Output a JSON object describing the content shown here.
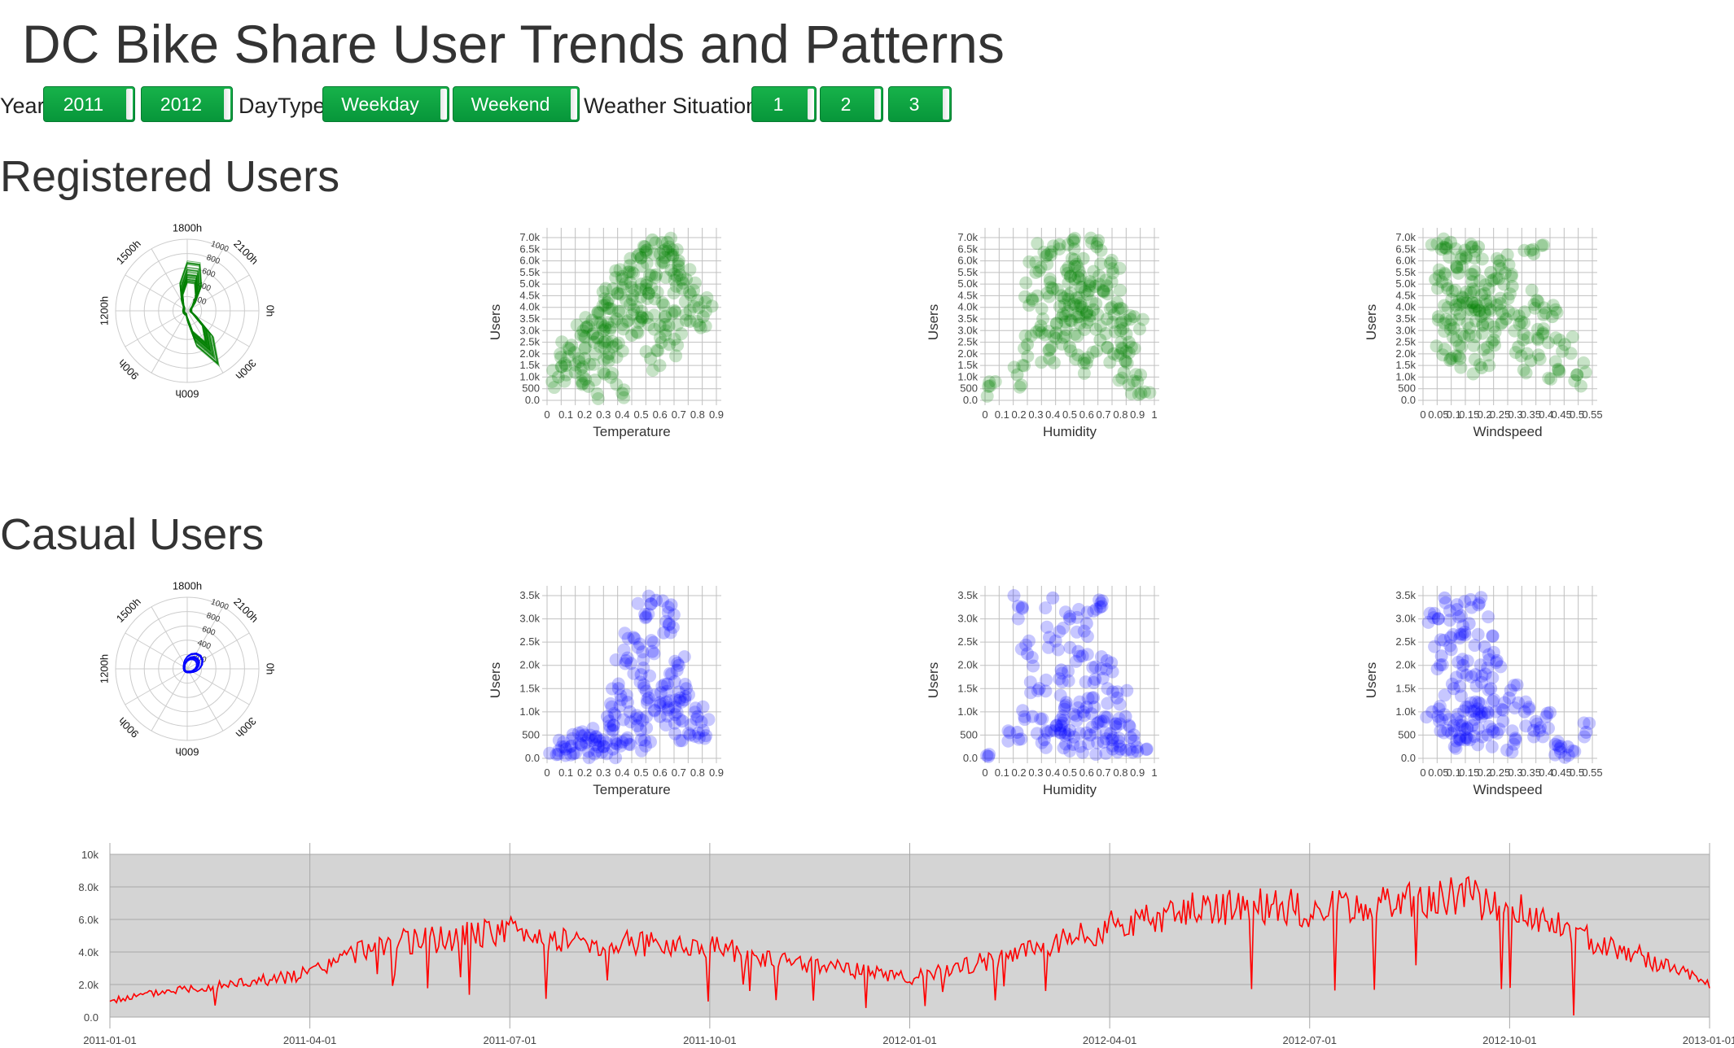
{
  "page": {
    "title": "DC Bike Share User Trends and Patterns"
  },
  "filters": {
    "year_label": "Year",
    "year_buttons": [
      "2011",
      "2012"
    ],
    "daytype_label": "DayType",
    "daytype_buttons": [
      "Weekday",
      "Weekend"
    ],
    "weather_label": "Weather Situation",
    "weather_buttons": [
      "1",
      "2",
      "3"
    ],
    "button_color": "#0a9e3f"
  },
  "colors": {
    "registered": "#008000",
    "casual": "#0000ff",
    "timeseries": "#ff0000",
    "timeseries_bg": "#d4d4d4"
  },
  "sections": {
    "registered": {
      "title": "Registered Users",
      "radial": {
        "hour_labels": [
          "1800h",
          "2100h",
          "0h",
          "300h",
          "600h",
          "900h",
          "1200h",
          "1500h"
        ],
        "radius_ticks": [
          "200",
          "400",
          "600",
          "800",
          "1000"
        ]
      },
      "scatter_temperature": {
        "xlabel": "Temperature",
        "ylabel": "Users",
        "xticks": [
          "0",
          "0.1",
          "0.2",
          "0.3",
          "0.4",
          "0.5",
          "0.6",
          "0.7",
          "0.8",
          "0.9"
        ],
        "yticks": [
          "0.0",
          "500",
          "1.0k",
          "1.5k",
          "2.0k",
          "2.5k",
          "3.0k",
          "3.5k",
          "4.0k",
          "4.5k",
          "5.0k",
          "5.5k",
          "6.0k",
          "6.5k",
          "7.0k"
        ]
      },
      "scatter_humidity": {
        "xlabel": "Humidity",
        "ylabel": "Users",
        "xticks": [
          "0",
          "0.1",
          "0.2",
          "0.3",
          "0.4",
          "0.5",
          "0.6",
          "0.7",
          "0.8",
          "0.9",
          "1"
        ],
        "yticks": [
          "0.0",
          "500",
          "1.0k",
          "1.5k",
          "2.0k",
          "2.5k",
          "3.0k",
          "3.5k",
          "4.0k",
          "4.5k",
          "5.0k",
          "5.5k",
          "6.0k",
          "6.5k",
          "7.0k"
        ]
      },
      "scatter_windspeed": {
        "xlabel": "Windspeed",
        "ylabel": "Users",
        "xticks": [
          "0",
          "0.05",
          "0.1",
          "0.15",
          "0.2",
          "0.25",
          "0.3",
          "0.35",
          "0.4",
          "0.45",
          "0.5",
          "0.55"
        ],
        "yticks": [
          "0.0",
          "500",
          "1.0k",
          "1.5k",
          "2.0k",
          "2.5k",
          "3.0k",
          "3.5k",
          "4.0k",
          "4.5k",
          "5.0k",
          "5.5k",
          "6.0k",
          "6.5k",
          "7.0k"
        ]
      }
    },
    "casual": {
      "title": "Casual Users",
      "radial": {
        "hour_labels": [
          "1800h",
          "2100h",
          "0h",
          "300h",
          "600h",
          "900h",
          "1200h",
          "1500h"
        ],
        "radius_ticks": [
          "200",
          "400",
          "600",
          "800",
          "1000"
        ]
      },
      "scatter_temperature": {
        "xlabel": "Temperature",
        "ylabel": "Users",
        "xticks": [
          "0",
          "0.1",
          "0.2",
          "0.3",
          "0.4",
          "0.5",
          "0.6",
          "0.7",
          "0.8",
          "0.9"
        ],
        "yticks": [
          "0.0",
          "500",
          "1.0k",
          "1.5k",
          "2.0k",
          "2.5k",
          "3.0k",
          "3.5k"
        ]
      },
      "scatter_humidity": {
        "xlabel": "Humidity",
        "ylabel": "Users",
        "xticks": [
          "0",
          "0.1",
          "0.2",
          "0.3",
          "0.4",
          "0.5",
          "0.6",
          "0.7",
          "0.8",
          "0.9",
          "1"
        ],
        "yticks": [
          "0.0",
          "500",
          "1.0k",
          "1.5k",
          "2.0k",
          "2.5k",
          "3.0k",
          "3.5k"
        ]
      },
      "scatter_windspeed": {
        "xlabel": "Windspeed",
        "ylabel": "Users",
        "xticks": [
          "0",
          "0.05",
          "0.1",
          "0.15",
          "0.2",
          "0.25",
          "0.3",
          "0.35",
          "0.4",
          "0.45",
          "0.5",
          "0.55"
        ],
        "yticks": [
          "0.0",
          "500",
          "1.0k",
          "1.5k",
          "2.0k",
          "2.5k",
          "3.0k",
          "3.5k"
        ]
      }
    }
  },
  "chart_data": [
    {
      "type": "scatter",
      "id": "reg-temp",
      "xlabel": "Temperature",
      "ylabel": "Users",
      "xlim": [
        0,
        0.9
      ],
      "ylim": [
        0,
        7000
      ],
      "points": [
        [
          0.06,
          1000
        ],
        [
          0.1,
          1500
        ],
        [
          0.12,
          2200
        ],
        [
          0.15,
          1200
        ],
        [
          0.18,
          2800
        ],
        [
          0.2,
          1800
        ],
        [
          0.22,
          3200
        ],
        [
          0.25,
          2500
        ],
        [
          0.27,
          3800
        ],
        [
          0.3,
          3000
        ],
        [
          0.32,
          4200
        ],
        [
          0.33,
          2000
        ],
        [
          0.35,
          4800
        ],
        [
          0.37,
          3500
        ],
        [
          0.4,
          5200
        ],
        [
          0.42,
          4300
        ],
        [
          0.44,
          5800
        ],
        [
          0.46,
          3900
        ],
        [
          0.48,
          6200
        ],
        [
          0.5,
          5000
        ],
        [
          0.52,
          6600
        ],
        [
          0.54,
          4600
        ],
        [
          0.56,
          6900
        ],
        [
          0.58,
          5400
        ],
        [
          0.6,
          6300
        ],
        [
          0.62,
          4100
        ],
        [
          0.64,
          6800
        ],
        [
          0.66,
          5600
        ],
        [
          0.68,
          3800
        ],
        [
          0.7,
          6000
        ],
        [
          0.72,
          4800
        ],
        [
          0.74,
          5200
        ],
        [
          0.76,
          3400
        ],
        [
          0.8,
          4300
        ],
        [
          0.83,
          3600
        ],
        [
          0.4,
          300
        ],
        [
          0.55,
          1800
        ],
        [
          0.65,
          2400
        ],
        [
          0.3,
          1200
        ],
        [
          0.45,
          2800
        ],
        [
          0.22,
          600
        ],
        [
          0.5,
          3600
        ],
        [
          0.6,
          3200
        ],
        [
          0.35,
          2300
        ]
      ]
    },
    {
      "type": "scatter",
      "id": "reg-hum",
      "xlabel": "Humidity",
      "ylabel": "Users",
      "xlim": [
        0,
        1
      ],
      "ylim": [
        0,
        7000
      ],
      "points": [
        [
          0.02,
          600
        ],
        [
          0.19,
          1100
        ],
        [
          0.25,
          2400
        ],
        [
          0.28,
          4300
        ],
        [
          0.3,
          5500
        ],
        [
          0.33,
          3200
        ],
        [
          0.36,
          6200
        ],
        [
          0.38,
          1800
        ],
        [
          0.4,
          4800
        ],
        [
          0.42,
          2900
        ],
        [
          0.44,
          6700
        ],
        [
          0.46,
          3700
        ],
        [
          0.48,
          5600
        ],
        [
          0.5,
          2300
        ],
        [
          0.52,
          6900
        ],
        [
          0.54,
          4400
        ],
        [
          0.56,
          3300
        ],
        [
          0.58,
          6100
        ],
        [
          0.6,
          1600
        ],
        [
          0.62,
          5100
        ],
        [
          0.64,
          3900
        ],
        [
          0.66,
          6600
        ],
        [
          0.68,
          2600
        ],
        [
          0.7,
          4700
        ],
        [
          0.72,
          3500
        ],
        [
          0.74,
          5900
        ],
        [
          0.76,
          2000
        ],
        [
          0.78,
          4200
        ],
        [
          0.8,
          3000
        ],
        [
          0.82,
          1200
        ],
        [
          0.85,
          2500
        ],
        [
          0.88,
          3600
        ],
        [
          0.9,
          800
        ],
        [
          0.5,
          4100
        ],
        [
          0.55,
          5300
        ],
        [
          0.6,
          3800
        ],
        [
          0.45,
          4500
        ],
        [
          0.65,
          4900
        ],
        [
          0.92,
          300
        ]
      ]
    },
    {
      "type": "scatter",
      "id": "reg-wind",
      "xlabel": "Windspeed",
      "ylabel": "Users",
      "xlim": [
        0,
        0.55
      ],
      "ylim": [
        0,
        7000
      ],
      "points": [
        [
          0.04,
          5200
        ],
        [
          0.05,
          3600
        ],
        [
          0.06,
          6500
        ],
        [
          0.07,
          2200
        ],
        [
          0.08,
          4800
        ],
        [
          0.09,
          6800
        ],
        [
          0.1,
          3100
        ],
        [
          0.11,
          5700
        ],
        [
          0.12,
          1800
        ],
        [
          0.13,
          4400
        ],
        [
          0.14,
          6200
        ],
        [
          0.15,
          2800
        ],
        [
          0.16,
          5100
        ],
        [
          0.17,
          3900
        ],
        [
          0.18,
          6600
        ],
        [
          0.19,
          1400
        ],
        [
          0.2,
          4600
        ],
        [
          0.21,
          3300
        ],
        [
          0.22,
          5500
        ],
        [
          0.23,
          2600
        ],
        [
          0.24,
          4100
        ],
        [
          0.25,
          6000
        ],
        [
          0.27,
          3500
        ],
        [
          0.29,
          4900
        ],
        [
          0.31,
          2300
        ],
        [
          0.33,
          3800
        ],
        [
          0.35,
          1700
        ],
        [
          0.37,
          4300
        ],
        [
          0.39,
          2900
        ],
        [
          0.42,
          3600
        ],
        [
          0.44,
          1300
        ],
        [
          0.46,
          2400
        ],
        [
          0.5,
          1100
        ],
        [
          0.36,
          6300
        ],
        [
          0.12,
          3700
        ],
        [
          0.16,
          4200
        ],
        [
          0.2,
          3800
        ]
      ]
    },
    {
      "type": "scatter",
      "id": "cas-temp",
      "xlabel": "Temperature",
      "ylabel": "Users",
      "xlim": [
        0,
        0.9
      ],
      "ylim": [
        0,
        3500
      ],
      "points": [
        [
          0.05,
          80
        ],
        [
          0.1,
          200
        ],
        [
          0.14,
          100
        ],
        [
          0.18,
          300
        ],
        [
          0.22,
          150
        ],
        [
          0.26,
          450
        ],
        [
          0.3,
          250
        ],
        [
          0.32,
          900
        ],
        [
          0.35,
          600
        ],
        [
          0.38,
          1500
        ],
        [
          0.4,
          350
        ],
        [
          0.42,
          2100
        ],
        [
          0.44,
          1000
        ],
        [
          0.46,
          2600
        ],
        [
          0.48,
          700
        ],
        [
          0.5,
          1800
        ],
        [
          0.52,
          3100
        ],
        [
          0.54,
          1300
        ],
        [
          0.56,
          2300
        ],
        [
          0.58,
          3400
        ],
        [
          0.6,
          900
        ],
        [
          0.62,
          2700
        ],
        [
          0.64,
          1600
        ],
        [
          0.66,
          3300
        ],
        [
          0.68,
          1100
        ],
        [
          0.7,
          2000
        ],
        [
          0.72,
          800
        ],
        [
          0.74,
          1500
        ],
        [
          0.76,
          500
        ],
        [
          0.8,
          900
        ],
        [
          0.83,
          600
        ],
        [
          0.2,
          500
        ],
        [
          0.5,
          400
        ],
        [
          0.6,
          1200
        ],
        [
          0.35,
          200
        ]
      ]
    },
    {
      "type": "scatter",
      "id": "cas-hum",
      "xlabel": "Humidity",
      "ylabel": "Users",
      "xlim": [
        0,
        1
      ],
      "ylim": [
        0,
        3500
      ],
      "points": [
        [
          0.02,
          40
        ],
        [
          0.19,
          560
        ],
        [
          0.22,
          3250
        ],
        [
          0.25,
          2250
        ],
        [
          0.28,
          900
        ],
        [
          0.32,
          1500
        ],
        [
          0.35,
          400
        ],
        [
          0.38,
          2600
        ],
        [
          0.4,
          3450
        ],
        [
          0.42,
          700
        ],
        [
          0.45,
          1900
        ],
        [
          0.48,
          1200
        ],
        [
          0.5,
          3000
        ],
        [
          0.52,
          300
        ],
        [
          0.55,
          2300
        ],
        [
          0.58,
          1000
        ],
        [
          0.6,
          2900
        ],
        [
          0.62,
          500
        ],
        [
          0.65,
          1700
        ],
        [
          0.68,
          3250
        ],
        [
          0.7,
          800
        ],
        [
          0.72,
          2100
        ],
        [
          0.75,
          400
        ],
        [
          0.78,
          1300
        ],
        [
          0.8,
          200
        ],
        [
          0.83,
          900
        ],
        [
          0.86,
          450
        ],
        [
          0.9,
          150
        ],
        [
          0.5,
          600
        ],
        [
          0.6,
          1100
        ],
        [
          0.45,
          700
        ],
        [
          0.7,
          350
        ]
      ]
    },
    {
      "type": "scatter",
      "id": "cas-wind",
      "xlabel": "Windspeed",
      "ylabel": "Users",
      "xlim": [
        0,
        0.55
      ],
      "ylim": [
        0,
        3500
      ],
      "points": [
        [
          0.03,
          1000
        ],
        [
          0.05,
          3000
        ],
        [
          0.06,
          2200
        ],
        [
          0.07,
          3450
        ],
        [
          0.08,
          600
        ],
        [
          0.09,
          2600
        ],
        [
          0.1,
          1500
        ],
        [
          0.11,
          3200
        ],
        [
          0.12,
          400
        ],
        [
          0.13,
          2000
        ],
        [
          0.14,
          1100
        ],
        [
          0.15,
          2900
        ],
        [
          0.16,
          700
        ],
        [
          0.17,
          1800
        ],
        [
          0.18,
          3300
        ],
        [
          0.19,
          900
        ],
        [
          0.2,
          2400
        ],
        [
          0.21,
          500
        ],
        [
          0.22,
          1500
        ],
        [
          0.24,
          2100
        ],
        [
          0.26,
          800
        ],
        [
          0.28,
          1300
        ],
        [
          0.3,
          400
        ],
        [
          0.33,
          1000
        ],
        [
          0.36,
          600
        ],
        [
          0.4,
          900
        ],
        [
          0.43,
          300
        ],
        [
          0.47,
          250
        ],
        [
          0.53,
          560
        ],
        [
          0.1,
          700
        ],
        [
          0.14,
          450
        ],
        [
          0.18,
          1200
        ]
      ]
    },
    {
      "type": "line",
      "id": "timeseries",
      "xlabel": "",
      "ylabel": "",
      "xticks": [
        "2011-01-01",
        "2011-04-01",
        "2011-07-01",
        "2011-10-01",
        "2012-01-01",
        "2012-04-01",
        "2012-07-01",
        "2012-10-01",
        "2013-01-01"
      ],
      "yticks": [
        "0.0",
        "2.0k",
        "4.0k",
        "6.0k",
        "8.0k",
        "10k"
      ],
      "ylim": [
        0,
        10000
      ],
      "x": [
        "2011-01-01",
        "2011-02-01",
        "2011-03-01",
        "2011-04-01",
        "2011-05-01",
        "2011-06-01",
        "2011-07-01",
        "2011-08-01",
        "2011-09-01",
        "2011-10-01",
        "2011-11-01",
        "2011-12-01",
        "2012-01-01",
        "2012-02-01",
        "2012-03-01",
        "2012-04-01",
        "2012-05-01",
        "2012-06-01",
        "2012-07-01",
        "2012-08-01",
        "2012-09-01",
        "2012-10-01",
        "2012-11-01",
        "2012-12-01",
        "2012-12-31"
      ],
      "series": [
        {
          "values": [
            1000,
            1700,
            2100,
            2700,
            4500,
            4800,
            5300,
            4600,
            4500,
            4400,
            3400,
            3000,
            2400,
            3300,
            4200,
            5600,
            6500,
            6900,
            6700,
            6800,
            7600,
            6900,
            5000,
            3700,
            2000
          ]
        }
      ]
    }
  ]
}
